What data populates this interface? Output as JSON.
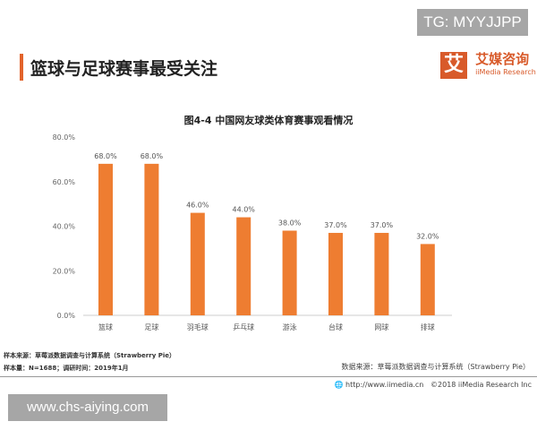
{
  "watermark_top": "TG: MYYJJPP",
  "watermark_bottom": "www.chs-aiying.com",
  "heading": "篮球与足球赛事最受关注",
  "logo": {
    "mark": "艾",
    "cn": "艾媒咨询",
    "en": "iiMedia Research"
  },
  "notes": {
    "sample_source": "样本来源：草莓派数据调查与计算系统（Strawberry Pie）",
    "sample_size": "样本量：N=1688；调研时间：2019年1月",
    "data_source": "数据来源：草莓派数据调查与计算系统（Strawberry Pie）"
  },
  "footer": {
    "url": "http://www.iimedia.cn",
    "copyright": "©2018  iiMedia Research Inc"
  },
  "colors": {
    "bar": "#ee7d31",
    "accent": "#e2632b"
  },
  "chart_data": {
    "type": "bar",
    "title": "图4-4 中国网友球类体育赛事观看情况",
    "categories": [
      "篮球",
      "足球",
      "羽毛球",
      "乒乓球",
      "游泳",
      "台球",
      "网球",
      "排球"
    ],
    "values": [
      68.0,
      68.0,
      46.0,
      44.0,
      38.0,
      37.0,
      37.0,
      32.0
    ],
    "data_labels": [
      "68.0%",
      "68.0%",
      "46.0%",
      "44.0%",
      "38.0%",
      "37.0%",
      "37.0%",
      "32.0%"
    ],
    "ylim": [
      0,
      80
    ],
    "yticks": [
      "0.0%",
      "20.0%",
      "40.0%",
      "60.0%",
      "80.0%"
    ],
    "grid": false,
    "xlabel": "",
    "ylabel": ""
  }
}
